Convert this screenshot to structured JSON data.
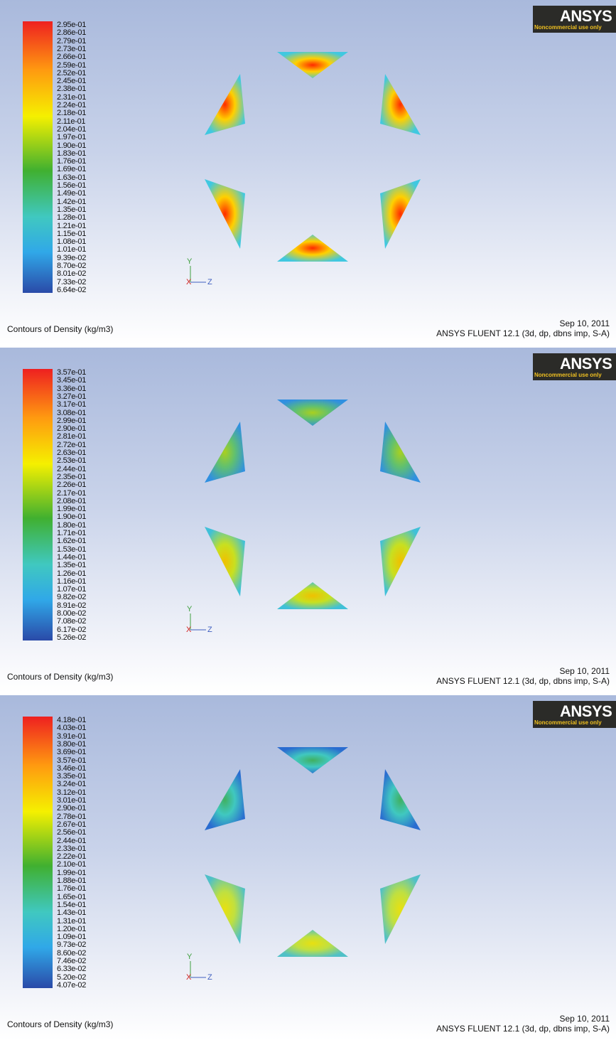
{
  "panels": [
    {
      "colorbar_labels": [
        "2.95e-01",
        "2.86e-01",
        "2.79e-01",
        "2.73e-01",
        "2.66e-01",
        "2.59e-01",
        "2.52e-01",
        "2.45e-01",
        "2.38e-01",
        "2.31e-01",
        "2.24e-01",
        "2.18e-01",
        "2.11e-01",
        "2.04e-01",
        "1.97e-01",
        "1.90e-01",
        "1.83e-01",
        "1.76e-01",
        "1.69e-01",
        "1.63e-01",
        "1.56e-01",
        "1.49e-01",
        "1.42e-01",
        "1.35e-01",
        "1.28e-01",
        "1.21e-01",
        "1.15e-01",
        "1.08e-01",
        "1.01e-01",
        "9.39e-02",
        "8.70e-02",
        "8.01e-02",
        "7.33e-02",
        "6.64e-02"
      ],
      "caption": "Contours of Density (kg/m3)",
      "date": "Sep 10, 2011",
      "solver": "ANSYS FLUENT 12.1 (3d, dp, dbns imp, S-A)",
      "logo": {
        "brand": "ANSYS",
        "notice": "Noncommercial use only"
      },
      "axes": {
        "y": "Y",
        "x": "X",
        "z": "Z"
      }
    },
    {
      "colorbar_labels": [
        "3.57e-01",
        "3.45e-01",
        "3.36e-01",
        "3.27e-01",
        "3.17e-01",
        "3.08e-01",
        "2.99e-01",
        "2.90e-01",
        "2.81e-01",
        "2.72e-01",
        "2.63e-01",
        "2.53e-01",
        "2.44e-01",
        "2.35e-01",
        "2.26e-01",
        "2.17e-01",
        "2.08e-01",
        "1.99e-01",
        "1.90e-01",
        "1.80e-01",
        "1.71e-01",
        "1.62e-01",
        "1.53e-01",
        "1.44e-01",
        "1.35e-01",
        "1.26e-01",
        "1.16e-01",
        "1.07e-01",
        "9.82e-02",
        "8.91e-02",
        "8.00e-02",
        "7.08e-02",
        "6.17e-02",
        "5.26e-02"
      ],
      "caption": "Contours of Density (kg/m3)",
      "date": "Sep 10, 2011",
      "solver": "ANSYS FLUENT 12.1 (3d, dp, dbns imp, S-A)",
      "logo": {
        "brand": "ANSYS",
        "notice": "Noncommercial use only"
      },
      "axes": {
        "y": "Y",
        "x": "X",
        "z": "Z"
      }
    },
    {
      "colorbar_labels": [
        "4.18e-01",
        "4.03e-01",
        "3.91e-01",
        "3.80e-01",
        "3.69e-01",
        "3.57e-01",
        "3.46e-01",
        "3.35e-01",
        "3.24e-01",
        "3.12e-01",
        "3.01e-01",
        "2.90e-01",
        "2.78e-01",
        "2.67e-01",
        "2.56e-01",
        "2.44e-01",
        "2.33e-01",
        "2.22e-01",
        "2.10e-01",
        "1.99e-01",
        "1.88e-01",
        "1.76e-01",
        "1.65e-01",
        "1.54e-01",
        "1.43e-01",
        "1.31e-01",
        "1.20e-01",
        "1.09e-01",
        "9.73e-02",
        "8.60e-02",
        "7.46e-02",
        "6.33e-02",
        "5.20e-02",
        "4.07e-02"
      ],
      "caption": "Contours of Density (kg/m3)",
      "date": "Sep 10, 2011",
      "solver": "ANSYS FLUENT 12.1 (3d, dp, dbns imp, S-A)",
      "logo": {
        "brand": "ANSYS",
        "notice": "Noncommercial use only"
      },
      "axes": {
        "y": "Y",
        "x": "X",
        "z": "Z"
      }
    }
  ]
}
